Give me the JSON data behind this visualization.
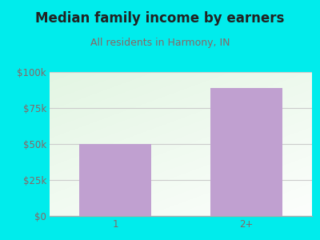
{
  "title": "Median family income by earners",
  "subtitle": "All residents in Harmony, IN",
  "categories": [
    "1",
    "2+"
  ],
  "values": [
    50000,
    89000
  ],
  "bar_color": "#c0a0d0",
  "background_color": "#00ecec",
  "title_color": "#222222",
  "subtitle_color": "#886666",
  "tick_color": "#886666",
  "grid_color": "#cccccc",
  "ylim": [
    0,
    100000
  ],
  "yticks": [
    0,
    25000,
    50000,
    75000,
    100000
  ],
  "ytick_labels": [
    "$0",
    "$25k",
    "$50k",
    "$75k",
    "$100k"
  ],
  "title_fontsize": 12,
  "subtitle_fontsize": 9,
  "tick_fontsize": 8.5
}
